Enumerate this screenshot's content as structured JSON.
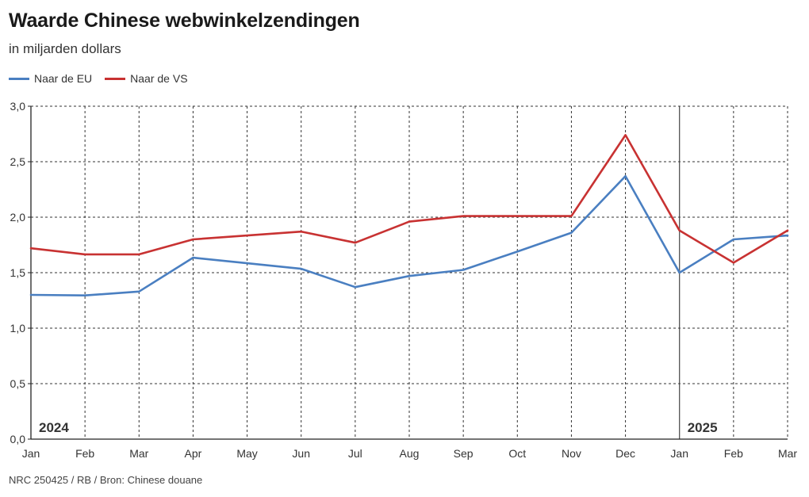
{
  "header": {
    "title": "Waarde Chinese webwinkelzendingen",
    "subtitle": "in miljarden dollars"
  },
  "footer": {
    "source": "NRC 250425 / RB / Bron: Chinese douane"
  },
  "colors": {
    "eu": "#4a7fc1",
    "vs": "#c83232",
    "grid": "#333333",
    "axis": "#222222"
  },
  "chart_data": {
    "type": "line",
    "title": "Waarde Chinese webwinkelzendingen",
    "subtitle": "in miljarden dollars",
    "categories": [
      "Jan",
      "Feb",
      "Mar",
      "Apr",
      "May",
      "Jun",
      "Jul",
      "Aug",
      "Sep",
      "Oct",
      "Nov",
      "Dec",
      "Jan",
      "Feb",
      "Mar"
    ],
    "year_labels": [
      {
        "label": "2024",
        "index": 0
      },
      {
        "label": "2025",
        "index": 12
      }
    ],
    "year_divider_index": 12,
    "series": [
      {
        "name": "Naar de EU",
        "color": "#4a7fc1",
        "values": [
          1.3,
          1.295,
          1.33,
          1.635,
          1.585,
          1.535,
          1.37,
          1.47,
          1.525,
          1.69,
          1.86,
          2.37,
          1.5,
          1.8,
          1.835
        ]
      },
      {
        "name": "Naar de VS",
        "color": "#c83232",
        "values": [
          1.72,
          1.665,
          1.665,
          1.8,
          1.835,
          1.87,
          1.77,
          1.96,
          2.01,
          2.01,
          2.01,
          2.74,
          1.88,
          1.59,
          1.88
        ]
      }
    ],
    "yticks": [
      "0,0",
      "0,5",
      "1,0",
      "1,5",
      "2,0",
      "2,5",
      "3,0"
    ],
    "ytick_values": [
      0,
      0.5,
      1.0,
      1.5,
      2.0,
      2.5,
      3.0
    ],
    "ylim": [
      0,
      3.0
    ],
    "xlabel": "",
    "ylabel": "",
    "grid": true,
    "legend_position": "top-left"
  }
}
